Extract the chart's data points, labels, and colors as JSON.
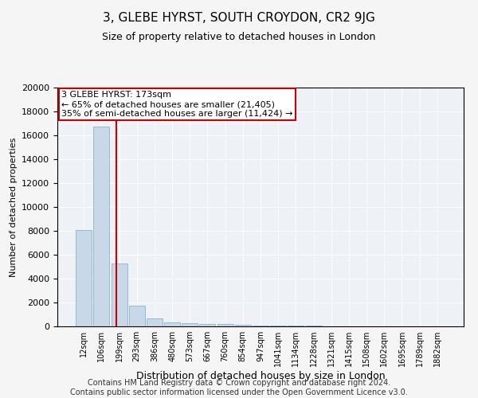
{
  "title": "3, GLEBE HYRST, SOUTH CROYDON, CR2 9JG",
  "subtitle": "Size of property relative to detached houses in London",
  "xlabel": "Distribution of detached houses by size in London",
  "ylabel": "Number of detached properties",
  "bar_color": "#c8d8e8",
  "bar_edge_color": "#7aaac8",
  "background_color": "#eef2f6",
  "grid_color": "#ffffff",
  "categories": [
    "12sqm",
    "106sqm",
    "199sqm",
    "293sqm",
    "386sqm",
    "480sqm",
    "573sqm",
    "667sqm",
    "760sqm",
    "854sqm",
    "947sqm",
    "1041sqm",
    "1134sqm",
    "1228sqm",
    "1321sqm",
    "1415sqm",
    "1508sqm",
    "1602sqm",
    "1695sqm",
    "1789sqm",
    "1882sqm"
  ],
  "values": [
    8050,
    16700,
    5300,
    1750,
    650,
    350,
    270,
    200,
    175,
    140,
    100,
    70,
    50,
    35,
    25,
    20,
    15,
    12,
    10,
    8,
    5
  ],
  "vline_color": "#cc0000",
  "vline_x": 1.85,
  "annotation_text": "3 GLEBE HYRST: 173sqm\n← 65% of detached houses are smaller (21,405)\n35% of semi-detached houses are larger (11,424) →",
  "annotation_box_color": "#ffffff",
  "annotation_box_edge_color": "#cc0000",
  "ylim": [
    0,
    20000
  ],
  "yticks": [
    0,
    2000,
    4000,
    6000,
    8000,
    10000,
    12000,
    14000,
    16000,
    18000,
    20000
  ],
  "footnote": "Contains HM Land Registry data © Crown copyright and database right 2024.\nContains public sector information licensed under the Open Government Licence v3.0.",
  "title_fontsize": 11,
  "subtitle_fontsize": 9,
  "ylabel_fontsize": 8,
  "xlabel_fontsize": 9,
  "tick_fontsize": 7,
  "annotation_fontsize": 8,
  "footnote_fontsize": 7
}
